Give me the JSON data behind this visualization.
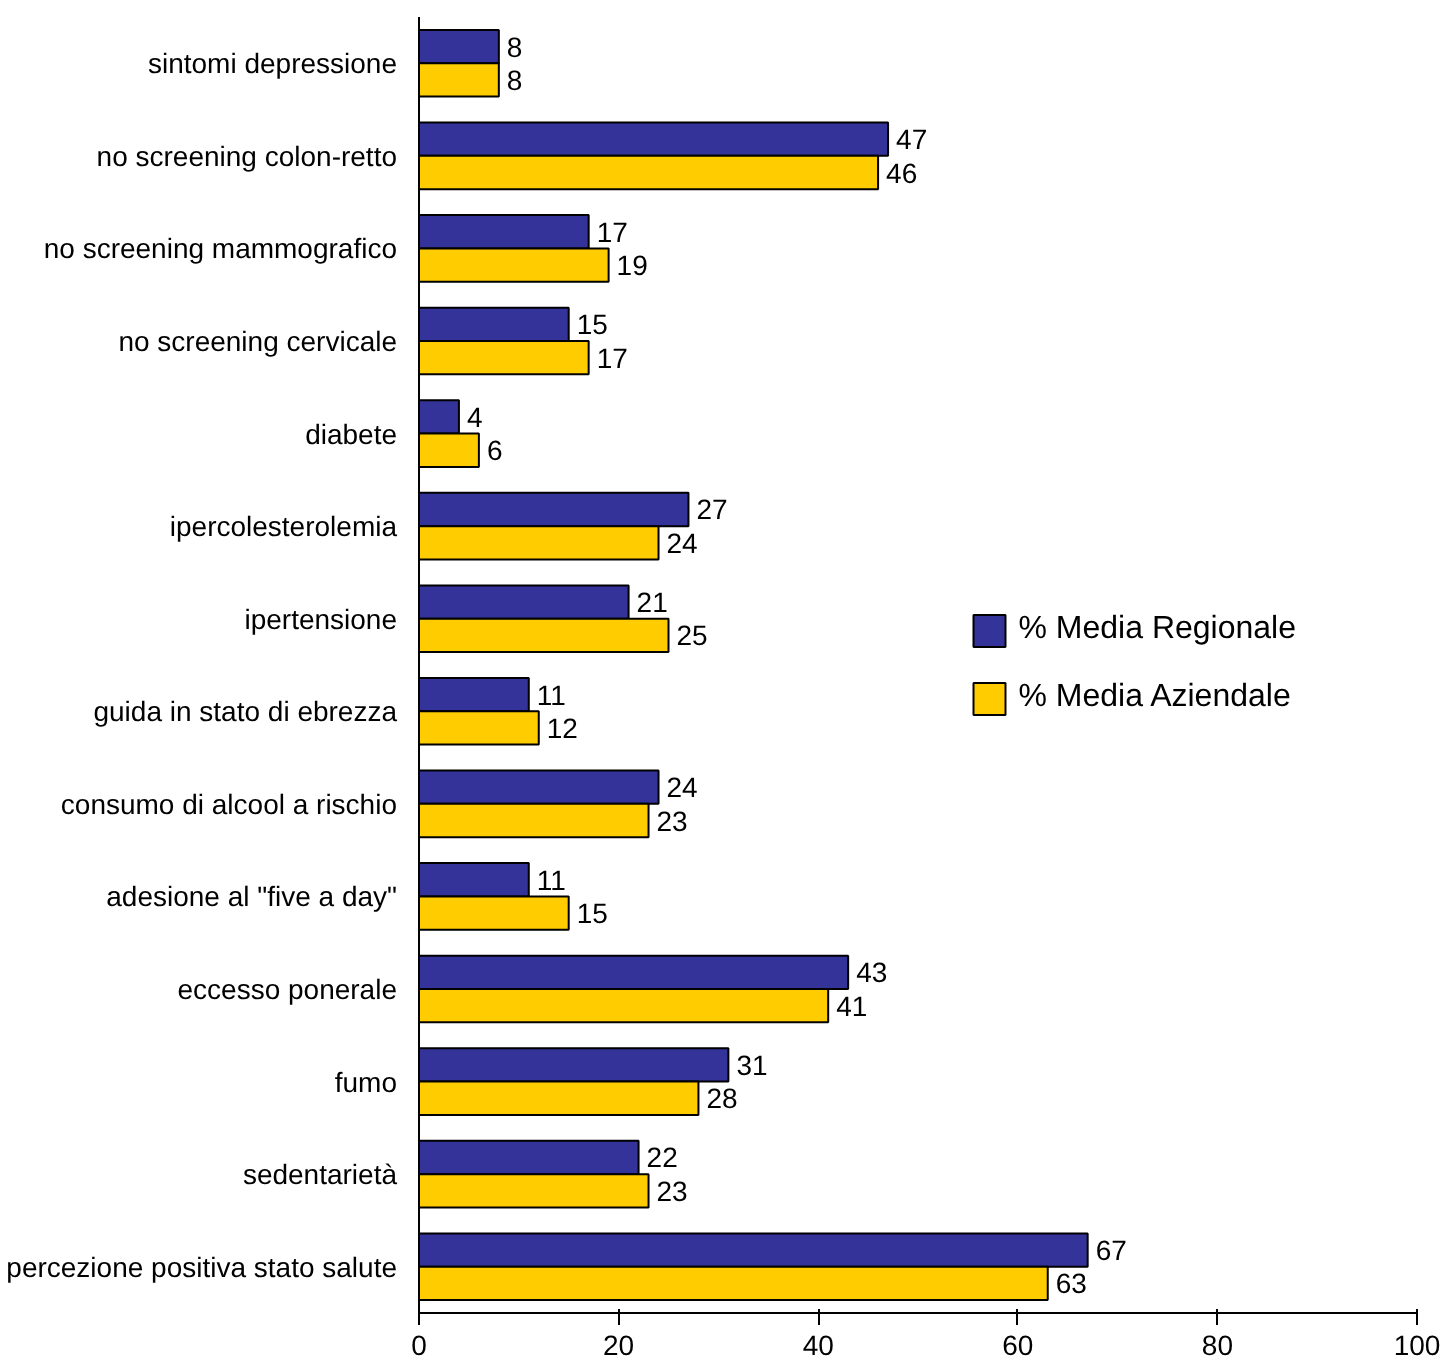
{
  "chart_data": {
    "type": "bar",
    "orientation": "horizontal",
    "categories": [
      "sintomi depressione",
      "no screening colon-retto",
      "no screening mammografico",
      "no screening cervicale",
      "diabete",
      "ipercolesterolemia",
      "ipertensione",
      "guida in stato di ebrezza",
      "consumo di alcool a rischio",
      "adesione al \"five a day\"",
      "eccesso ponerale",
      "fumo",
      "sedentarietà",
      "percezione positiva stato salute"
    ],
    "series": [
      {
        "name": "% Media Regionale",
        "color": "#333399",
        "values": [
          8,
          47,
          17,
          15,
          4,
          27,
          21,
          11,
          24,
          11,
          43,
          31,
          22,
          67
        ]
      },
      {
        "name": "% Media Aziendale",
        "color": "#ffcc00",
        "values": [
          8,
          46,
          19,
          17,
          6,
          24,
          25,
          12,
          23,
          15,
          41,
          28,
          23,
          63
        ]
      }
    ],
    "xlim": [
      0,
      100
    ],
    "xticks": [
      0,
      20,
      40,
      60,
      80,
      100
    ],
    "grid": false,
    "legend": "right",
    "data_labels": true
  }
}
